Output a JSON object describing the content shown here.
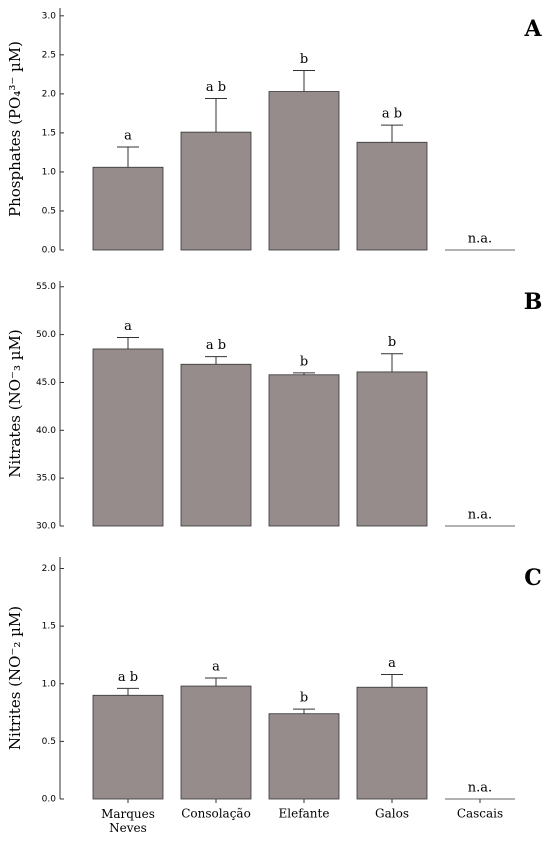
{
  "chart_data": [
    {
      "type": "bar",
      "label": "A",
      "ylabel": "Phosphates (PO₄³⁻ µM)",
      "color": "#958c8b",
      "values": [
        1.06,
        1.51,
        2.03,
        1.38,
        null
      ],
      "errors": [
        0.26,
        0.43,
        0.27,
        0.22,
        null
      ],
      "annotations": [
        "a",
        "a b",
        "b",
        "a b",
        "n.a."
      ],
      "ylim": [
        0,
        3.1
      ],
      "yticks": [
        {
          "value": 0,
          "label": "0.0"
        },
        {
          "value": 0.5,
          "label": "0.5"
        },
        {
          "value": 1,
          "label": "1.0"
        },
        {
          "value": 1.5,
          "label": "1.5"
        },
        {
          "value": 2,
          "label": "2.0"
        },
        {
          "value": 2.5,
          "label": "2.5"
        },
        {
          "value": 3,
          "label": "3.0"
        }
      ]
    },
    {
      "type": "bar",
      "label": "B",
      "ylabel": "Nitrates (NO⁻₃ µM)",
      "color": "#958c8b",
      "values": [
        48.5,
        46.9,
        45.8,
        46.1,
        null
      ],
      "errors": [
        1.2,
        0.8,
        0.2,
        1.9,
        null
      ],
      "annotations": [
        "a",
        "a b",
        "b",
        "b",
        "n.a."
      ],
      "ylim": [
        30,
        55.6
      ],
      "yticks": [
        {
          "value": 30,
          "label": "30.0"
        },
        {
          "value": 35,
          "label": "35.0"
        },
        {
          "value": 40,
          "label": "40.0"
        },
        {
          "value": 45,
          "label": "45.0"
        },
        {
          "value": 50,
          "label": "50.0"
        },
        {
          "value": 55,
          "label": "55.0"
        }
      ]
    },
    {
      "type": "bar",
      "label": "C",
      "ylabel": "Nitrites (NO⁻₂ µM)",
      "color": "#958c8b",
      "categories": [
        "Marques Neves",
        "Consolação",
        "Elefante",
        "Galos",
        "Cascais"
      ],
      "values": [
        0.9,
        0.98,
        0.74,
        0.97,
        null
      ],
      "errors": [
        0.06,
        0.07,
        0.04,
        0.11,
        null
      ],
      "annotations": [
        "a b",
        "a",
        "b",
        "a",
        "n.a."
      ],
      "ylim": [
        0,
        2.1
      ],
      "yticks": [
        {
          "value": 0,
          "label": "0.0"
        },
        {
          "value": 0.5,
          "label": "0.5"
        },
        {
          "value": 1,
          "label": "1.0"
        },
        {
          "value": 1.5,
          "label": "1.5"
        },
        {
          "value": 2,
          "label": "2.0"
        }
      ]
    }
  ]
}
